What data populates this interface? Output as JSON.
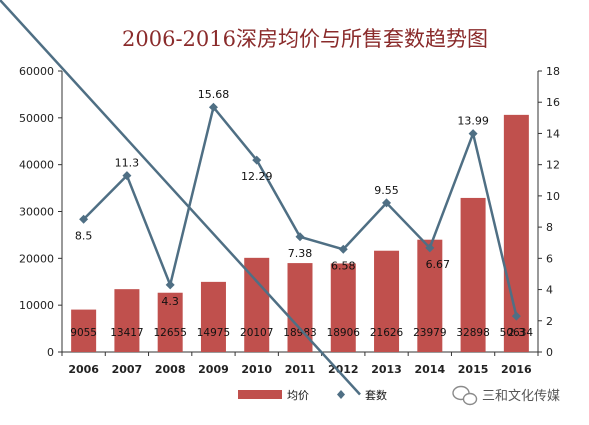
{
  "chart_data": {
    "type": "bar+line",
    "title": "2006-2016深房均价与所售套数趋势图",
    "categories": [
      "2006",
      "2007",
      "2008",
      "2009",
      "2010",
      "2011",
      "2012",
      "2013",
      "2014",
      "2015",
      "2016"
    ],
    "series": [
      {
        "name": "均价",
        "type": "bar",
        "axis": "left",
        "color": "#c0504d",
        "values": [
          9055,
          13417,
          12655,
          14975,
          20107,
          18983,
          18906,
          21626,
          23979,
          32898,
          50634
        ]
      },
      {
        "name": "套数",
        "type": "line",
        "axis": "right",
        "color": "#4f6f84",
        "values": [
          8.5,
          11.3,
          4.3,
          15.68,
          12.29,
          7.38,
          6.58,
          9.55,
          6.67,
          13.99,
          2.3
        ]
      }
    ],
    "y_left": {
      "min": 0,
      "max": 60000,
      "ticks": [
        0,
        10000,
        20000,
        30000,
        40000,
        50000,
        60000
      ]
    },
    "y_right": {
      "min": 0,
      "max": 18,
      "ticks": [
        0,
        2,
        4,
        6,
        8,
        10,
        12,
        14,
        16,
        18
      ]
    },
    "grid": false,
    "legend": "bottom"
  },
  "watermark": {
    "text": "三和文化传媒",
    "icon": "wechat-icon"
  }
}
